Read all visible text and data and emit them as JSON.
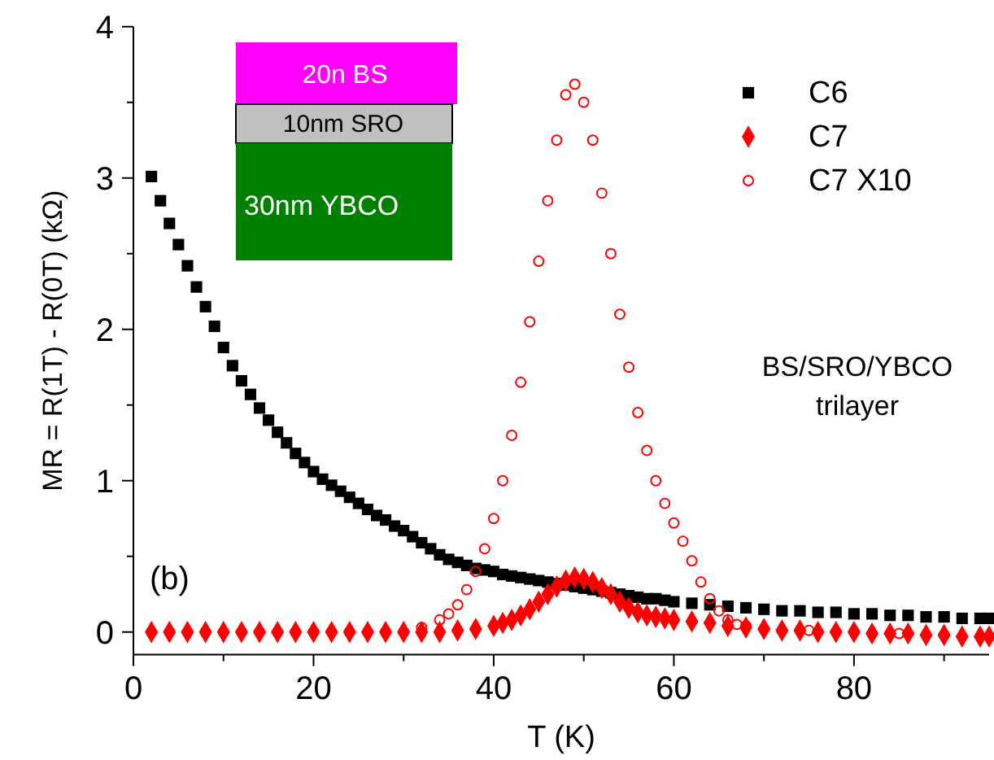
{
  "chart_data": {
    "type": "scatter",
    "xlabel": "T (K)",
    "ylabel": "MR = R(1T) - R(0T)  (kΩ)",
    "xlim": [
      0,
      95
    ],
    "ylim": [
      -0.15,
      4
    ],
    "xticks": [
      0,
      {
        "value": 10,
        "label": null
      },
      20,
      {
        "value": 30,
        "label": null
      },
      40,
      {
        "value": 50,
        "label": null
      },
      60,
      {
        "value": 70,
        "label": null
      },
      80,
      {
        "value": 90,
        "label": null
      }
    ],
    "yticks": [
      0,
      {
        "value": 0.5,
        "label": null
      },
      1,
      {
        "value": 1.5,
        "label": null
      },
      2,
      {
        "value": 2.5,
        "label": null
      },
      3,
      {
        "value": 3.5,
        "label": null
      },
      4
    ],
    "legend": "top right",
    "grid": false,
    "annotations": [
      "20n BS",
      "10nm SRO",
      "30nm YBCO",
      "(b)",
      "BS/SRO/YBCO",
      "trilayer"
    ],
    "series": [
      {
        "name": "C6",
        "color": "#000000",
        "marker": "square",
        "x": [
          2,
          3,
          4,
          5,
          6,
          7,
          8,
          9,
          10,
          11,
          12,
          13,
          14,
          15,
          16,
          17,
          18,
          19,
          20,
          21,
          22,
          23,
          24,
          25,
          26,
          27,
          28,
          29,
          30,
          31,
          32,
          33,
          34,
          35,
          36,
          37,
          38,
          39,
          40,
          41,
          42,
          43,
          44,
          45,
          46,
          47,
          48,
          49,
          50,
          51,
          52,
          53,
          54,
          55,
          56,
          57,
          58,
          59,
          60,
          62,
          64,
          66,
          68,
          70,
          72,
          74,
          76,
          78,
          80,
          82,
          84,
          86,
          88,
          90,
          92,
          94,
          95
        ],
        "values": [
          3.01,
          2.85,
          2.7,
          2.56,
          2.42,
          2.28,
          2.15,
          2.02,
          1.88,
          1.76,
          1.66,
          1.57,
          1.48,
          1.4,
          1.32,
          1.25,
          1.18,
          1.12,
          1.06,
          1.01,
          0.97,
          0.93,
          0.89,
          0.85,
          0.81,
          0.77,
          0.74,
          0.7,
          0.67,
          0.63,
          0.59,
          0.55,
          0.51,
          0.48,
          0.46,
          0.44,
          0.42,
          0.41,
          0.4,
          0.38,
          0.37,
          0.36,
          0.35,
          0.34,
          0.33,
          0.32,
          0.31,
          0.3,
          0.29,
          0.28,
          0.27,
          0.26,
          0.25,
          0.24,
          0.23,
          0.22,
          0.22,
          0.21,
          0.2,
          0.19,
          0.18,
          0.17,
          0.16,
          0.15,
          0.14,
          0.14,
          0.13,
          0.13,
          0.12,
          0.12,
          0.11,
          0.11,
          0.1,
          0.1,
          0.09,
          0.09,
          0.09
        ]
      },
      {
        "name": "C7",
        "color": "#ff0000",
        "marker": "diamond",
        "x": [
          2,
          4,
          6,
          8,
          10,
          12,
          14,
          16,
          18,
          20,
          22,
          24,
          26,
          28,
          30,
          32,
          34,
          36,
          38,
          40,
          41,
          42,
          43,
          44,
          45,
          46,
          47,
          48,
          49,
          50,
          51,
          52,
          53,
          54,
          55,
          56,
          57,
          58,
          59,
          60,
          62,
          64,
          66,
          68,
          70,
          72,
          74,
          76,
          78,
          80,
          82,
          84,
          86,
          88,
          90,
          92,
          94,
          95
        ],
        "values": [
          0,
          0,
          0,
          0,
          0,
          0,
          0,
          0,
          0,
          0,
          0,
          0,
          0,
          0,
          0,
          0,
          0,
          0.01,
          0.02,
          0.04,
          0.06,
          0.08,
          0.11,
          0.15,
          0.2,
          0.25,
          0.3,
          0.34,
          0.36,
          0.35,
          0.33,
          0.29,
          0.25,
          0.2,
          0.16,
          0.13,
          0.11,
          0.1,
          0.09,
          0.08,
          0.07,
          0.06,
          0.04,
          0.03,
          0.02,
          0.01,
          0.01,
          0,
          0,
          0,
          -0.01,
          -0.01,
          -0.01,
          -0.02,
          -0.02,
          -0.03,
          -0.03,
          -0.03
        ]
      },
      {
        "name": "C7  X10",
        "color": "#ff0000",
        "marker": "circle",
        "x": [
          2,
          4,
          6,
          8,
          10,
          12,
          14,
          16,
          18,
          20,
          22,
          24,
          26,
          28,
          30,
          32,
          34,
          35,
          36,
          37,
          38,
          39,
          40,
          41,
          42,
          43,
          44,
          45,
          46,
          47,
          48,
          49,
          50,
          51,
          52,
          53,
          54,
          55,
          56,
          57,
          58,
          59,
          60,
          61,
          62,
          63,
          64,
          65,
          66,
          67,
          68,
          70,
          72,
          75,
          78,
          80,
          85,
          90,
          95
        ],
        "values": [
          0,
          0,
          0,
          0,
          0,
          0,
          0,
          0,
          0,
          0,
          0,
          0,
          0,
          0,
          0,
          0.03,
          0.08,
          0.12,
          0.18,
          0.28,
          0.4,
          0.55,
          0.75,
          1,
          1.3,
          1.65,
          2.05,
          2.45,
          2.85,
          3.25,
          3.55,
          3.62,
          3.5,
          3.25,
          2.9,
          2.5,
          2.1,
          1.75,
          1.45,
          1.2,
          1,
          0.85,
          0.72,
          0.6,
          0.47,
          0.33,
          0.22,
          0.14,
          0.08,
          0.05,
          0.04,
          0.02,
          0.01,
          0.01,
          0,
          0,
          -0.01,
          -0.02,
          -0.03
        ]
      }
    ]
  }
}
